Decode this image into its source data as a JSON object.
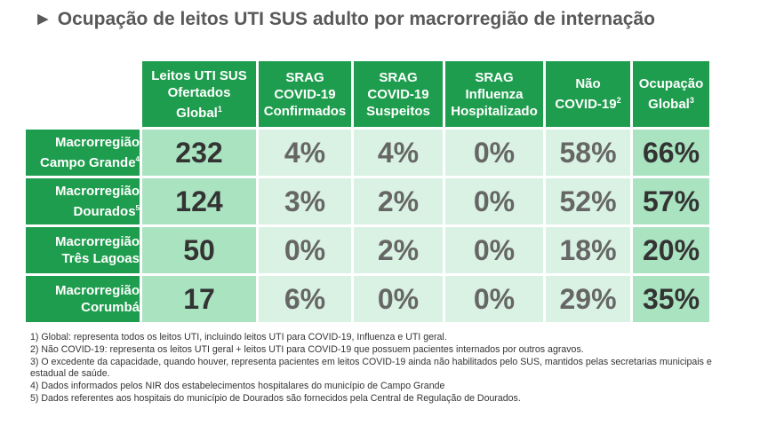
{
  "title": "Ocupação de leitos UTI SUS adulto por macrorregião de internação",
  "title_arrow": "►",
  "columns": [
    {
      "lines": [
        "Leitos UTI SUS",
        "Ofertados",
        "Global"
      ],
      "sup": "1"
    },
    {
      "lines": [
        "SRAG",
        "COVID-19",
        "Confirmados"
      ],
      "sup": ""
    },
    {
      "lines": [
        "SRAG",
        "COVID-19",
        "Suspeitos"
      ],
      "sup": ""
    },
    {
      "lines": [
        "SRAG",
        "Influenza",
        "Hospitalizado"
      ],
      "sup": ""
    },
    {
      "lines": [
        "Não",
        "COVID-19"
      ],
      "sup": "2"
    },
    {
      "lines": [
        "Ocupação",
        "Global"
      ],
      "sup": "3"
    }
  ],
  "rows": [
    {
      "line1": "Macrorregião",
      "line2": "Campo Grande",
      "sup": "4",
      "values": [
        "232",
        "4%",
        "4%",
        "0%",
        "58%",
        "66%"
      ]
    },
    {
      "line1": "Macrorregião",
      "line2": "Dourados",
      "sup": "5",
      "values": [
        "124",
        "3%",
        "2%",
        "0%",
        "52%",
        "57%"
      ]
    },
    {
      "line1": "Macrorregião",
      "line2": "Três Lagoas",
      "sup": "",
      "values": [
        "50",
        "0%",
        "2%",
        "0%",
        "18%",
        "20%"
      ]
    },
    {
      "line1": "Macrorregião",
      "line2": "Corumbá",
      "sup": "",
      "values": [
        "17",
        "6%",
        "0%",
        "0%",
        "29%",
        "35%"
      ]
    }
  ],
  "notes": [
    "1) Global: representa todos os leitos UTI, incluindo leitos UTI para COVID-19, Influenza e UTI geral.",
    "2) Não COVID-19: representa os leitos UTI geral + leitos UTI para COVID-19 que possuem pacientes internados por outros agravos.",
    "3) O excedente da capacidade, quando houver, representa pacientes em leitos COVID-19 ainda não habilitados pelo SUS, mantidos pelas secretarias municipais e estadual de saúde.",
    "4) Dados informados pelos NIR dos estabelecimentos hospitalares do município de Campo Grande",
    "5) Dados referentes aos hospitais do município de Dourados são fornecidos pela Central de Regulação de Dourados."
  ]
}
